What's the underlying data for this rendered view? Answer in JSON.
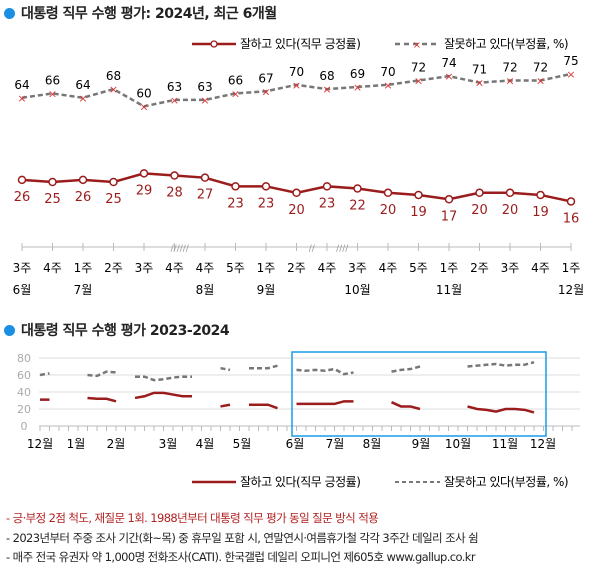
{
  "colors": {
    "approve": "#9b1c1c",
    "disapprove": "#777777",
    "box": "#1a9be6",
    "accent_dot": "#1a8fe3",
    "note_red": "#b22222"
  },
  "chart_data": [
    {
      "type": "line",
      "title": "대통령 직무 수행 평가: 2024년, 최근 6개월",
      "legend_position": "top-right",
      "week_labels": [
        "3주",
        "4주",
        "1주",
        "2주",
        "3주",
        "4주",
        "4주",
        "5주",
        "1주",
        "2주",
        "4주",
        "3주",
        "4주",
        "5주",
        "1주",
        "2주",
        "3주",
        "4주",
        "1주"
      ],
      "month_labels": [
        {
          "index": 0,
          "label": "6월"
        },
        {
          "index": 2,
          "label": "7월"
        },
        {
          "index": 6,
          "label": "8월"
        },
        {
          "index": 8,
          "label": "9월"
        },
        {
          "index": 11,
          "label": "10월"
        },
        {
          "index": 14,
          "label": "11월"
        },
        {
          "index": 18,
          "label": "12월"
        }
      ],
      "breaks": [
        {
          "after": 5,
          "mark": "//////"
        },
        {
          "after": 9,
          "mark": "//"
        },
        {
          "after": 10,
          "mark": "////"
        }
      ],
      "series": [
        {
          "name": "잘하고 있다(직무 긍정률)",
          "values": [
            26,
            25,
            26,
            25,
            29,
            28,
            27,
            23,
            23,
            20,
            23,
            22,
            20,
            19,
            17,
            20,
            20,
            19,
            16
          ]
        },
        {
          "name": "잘못하고 있다(부정률, %)",
          "values": [
            64,
            66,
            64,
            68,
            60,
            63,
            63,
            66,
            67,
            70,
            68,
            69,
            70,
            72,
            74,
            71,
            72,
            72,
            75
          ]
        }
      ]
    },
    {
      "type": "line",
      "title": "대통령 직무 수행 평가 2023-2024",
      "ylim": [
        0,
        80
      ],
      "yticks": [
        0,
        20,
        40,
        60,
        80
      ],
      "grid": true,
      "month_labels": [
        "12월",
        "1월",
        "2월",
        "3월",
        "4월",
        "5월",
        "6월",
        "7월",
        "8월",
        "9월",
        "10월",
        "11월",
        "12월"
      ],
      "legend_position": "bottom-right",
      "series": [
        {
          "name": "잘하고 있다(직무 긍정률)",
          "values": [
            31,
            31,
            null,
            null,
            null,
            33,
            32,
            32,
            29,
            null,
            33,
            35,
            39,
            39,
            37,
            35,
            35,
            null,
            null,
            23,
            25,
            null,
            25,
            25,
            25,
            21,
            null,
            26,
            26,
            26,
            26,
            26,
            29,
            29,
            null,
            null,
            null,
            28,
            23,
            23,
            20,
            null,
            null,
            null,
            null,
            23,
            20,
            19,
            17,
            20,
            20,
            19,
            16
          ]
        },
        {
          "name": "잘못하고 있다(부정률, %)",
          "values": [
            60,
            62,
            null,
            null,
            null,
            60,
            59,
            64,
            63,
            null,
            58,
            58,
            54,
            55,
            57,
            58,
            58,
            null,
            null,
            68,
            66,
            null,
            68,
            68,
            68,
            71,
            null,
            66,
            65,
            66,
            65,
            67,
            61,
            63,
            null,
            null,
            null,
            64,
            66,
            67,
            70,
            null,
            null,
            null,
            null,
            70,
            71,
            72,
            73,
            71,
            72,
            72,
            75
          ]
        }
      ]
    }
  ],
  "notes": [
    "- 긍·부정 2점 척도, 재질문 1회. 1988년부터 대통령 직무 평가 동일 질문 방식 적용",
    "- 2023년부터 주중 조사 기간(화~목) 중 휴무일 포함 시, 연말연시·여름휴가철 각각 3주간 데일리 조사 쉼",
    "- 매주 전국 유권자 약 1,000명 전화조사(CATI). 한국갤럽 데일리 오피니언 제605호 www.gallup.co.kr"
  ]
}
